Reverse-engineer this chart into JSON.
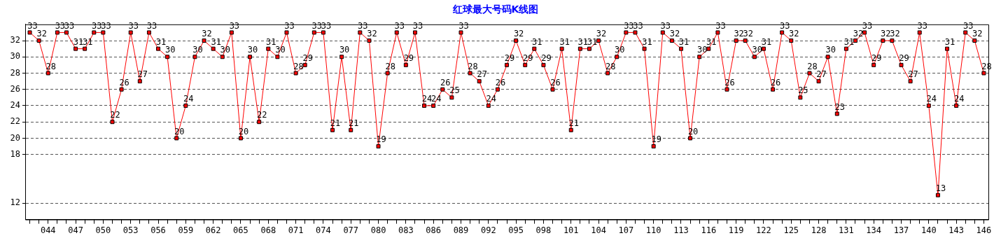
{
  "chart_data": {
    "type": "line",
    "title": "红球最大号码K线图",
    "categories": [
      null,
      null,
      "044",
      null,
      null,
      "047",
      null,
      null,
      "050",
      null,
      null,
      "053",
      null,
      null,
      "056",
      null,
      null,
      "059",
      null,
      null,
      "062",
      null,
      null,
      "065",
      null,
      null,
      "068",
      null,
      null,
      "071",
      null,
      null,
      "074",
      null,
      null,
      "077",
      null,
      null,
      "080",
      null,
      null,
      "083",
      null,
      null,
      "086",
      null,
      null,
      "089",
      null,
      null,
      "092",
      null,
      null,
      "095",
      null,
      null,
      "098",
      null,
      null,
      "101",
      null,
      null,
      "104",
      null,
      null,
      "107",
      null,
      null,
      "110",
      null,
      null,
      "113",
      null,
      null,
      "116",
      null,
      null,
      "119",
      null,
      null,
      "122",
      null,
      null,
      "125",
      null,
      null,
      "128",
      null,
      null,
      "131",
      null,
      null,
      "134",
      null,
      null,
      "137",
      null,
      null,
      "140",
      null,
      null,
      "143",
      null,
      null,
      "146"
    ],
    "values": [
      33,
      32,
      28,
      33,
      33,
      31,
      31,
      33,
      33,
      22,
      26,
      33,
      27,
      33,
      31,
      30,
      20,
      24,
      30,
      32,
      31,
      30,
      33,
      20,
      30,
      22,
      31,
      30,
      33,
      28,
      29,
      33,
      33,
      21,
      30,
      21,
      33,
      32,
      19,
      28,
      33,
      29,
      33,
      24,
      24,
      26,
      25,
      33,
      28,
      27,
      24,
      26,
      29,
      32,
      29,
      31,
      29,
      26,
      31,
      21,
      31,
      31,
      32,
      28,
      30,
      33,
      33,
      31,
      19,
      33,
      32,
      31,
      20,
      30,
      31,
      33,
      26,
      32,
      32,
      30,
      31,
      26,
      33,
      32,
      25,
      28,
      27,
      30,
      23,
      31,
      32,
      33,
      29,
      32,
      32,
      29,
      27,
      33,
      24,
      13,
      31,
      24,
      33,
      32,
      28
    ],
    "color": "#ff0000",
    "marker": "square",
    "grid": "y",
    "data_labels": true,
    "ylim": [
      10,
      34
    ],
    "yticks": [
      12,
      18,
      20,
      22,
      24,
      26,
      28,
      30,
      32
    ]
  }
}
